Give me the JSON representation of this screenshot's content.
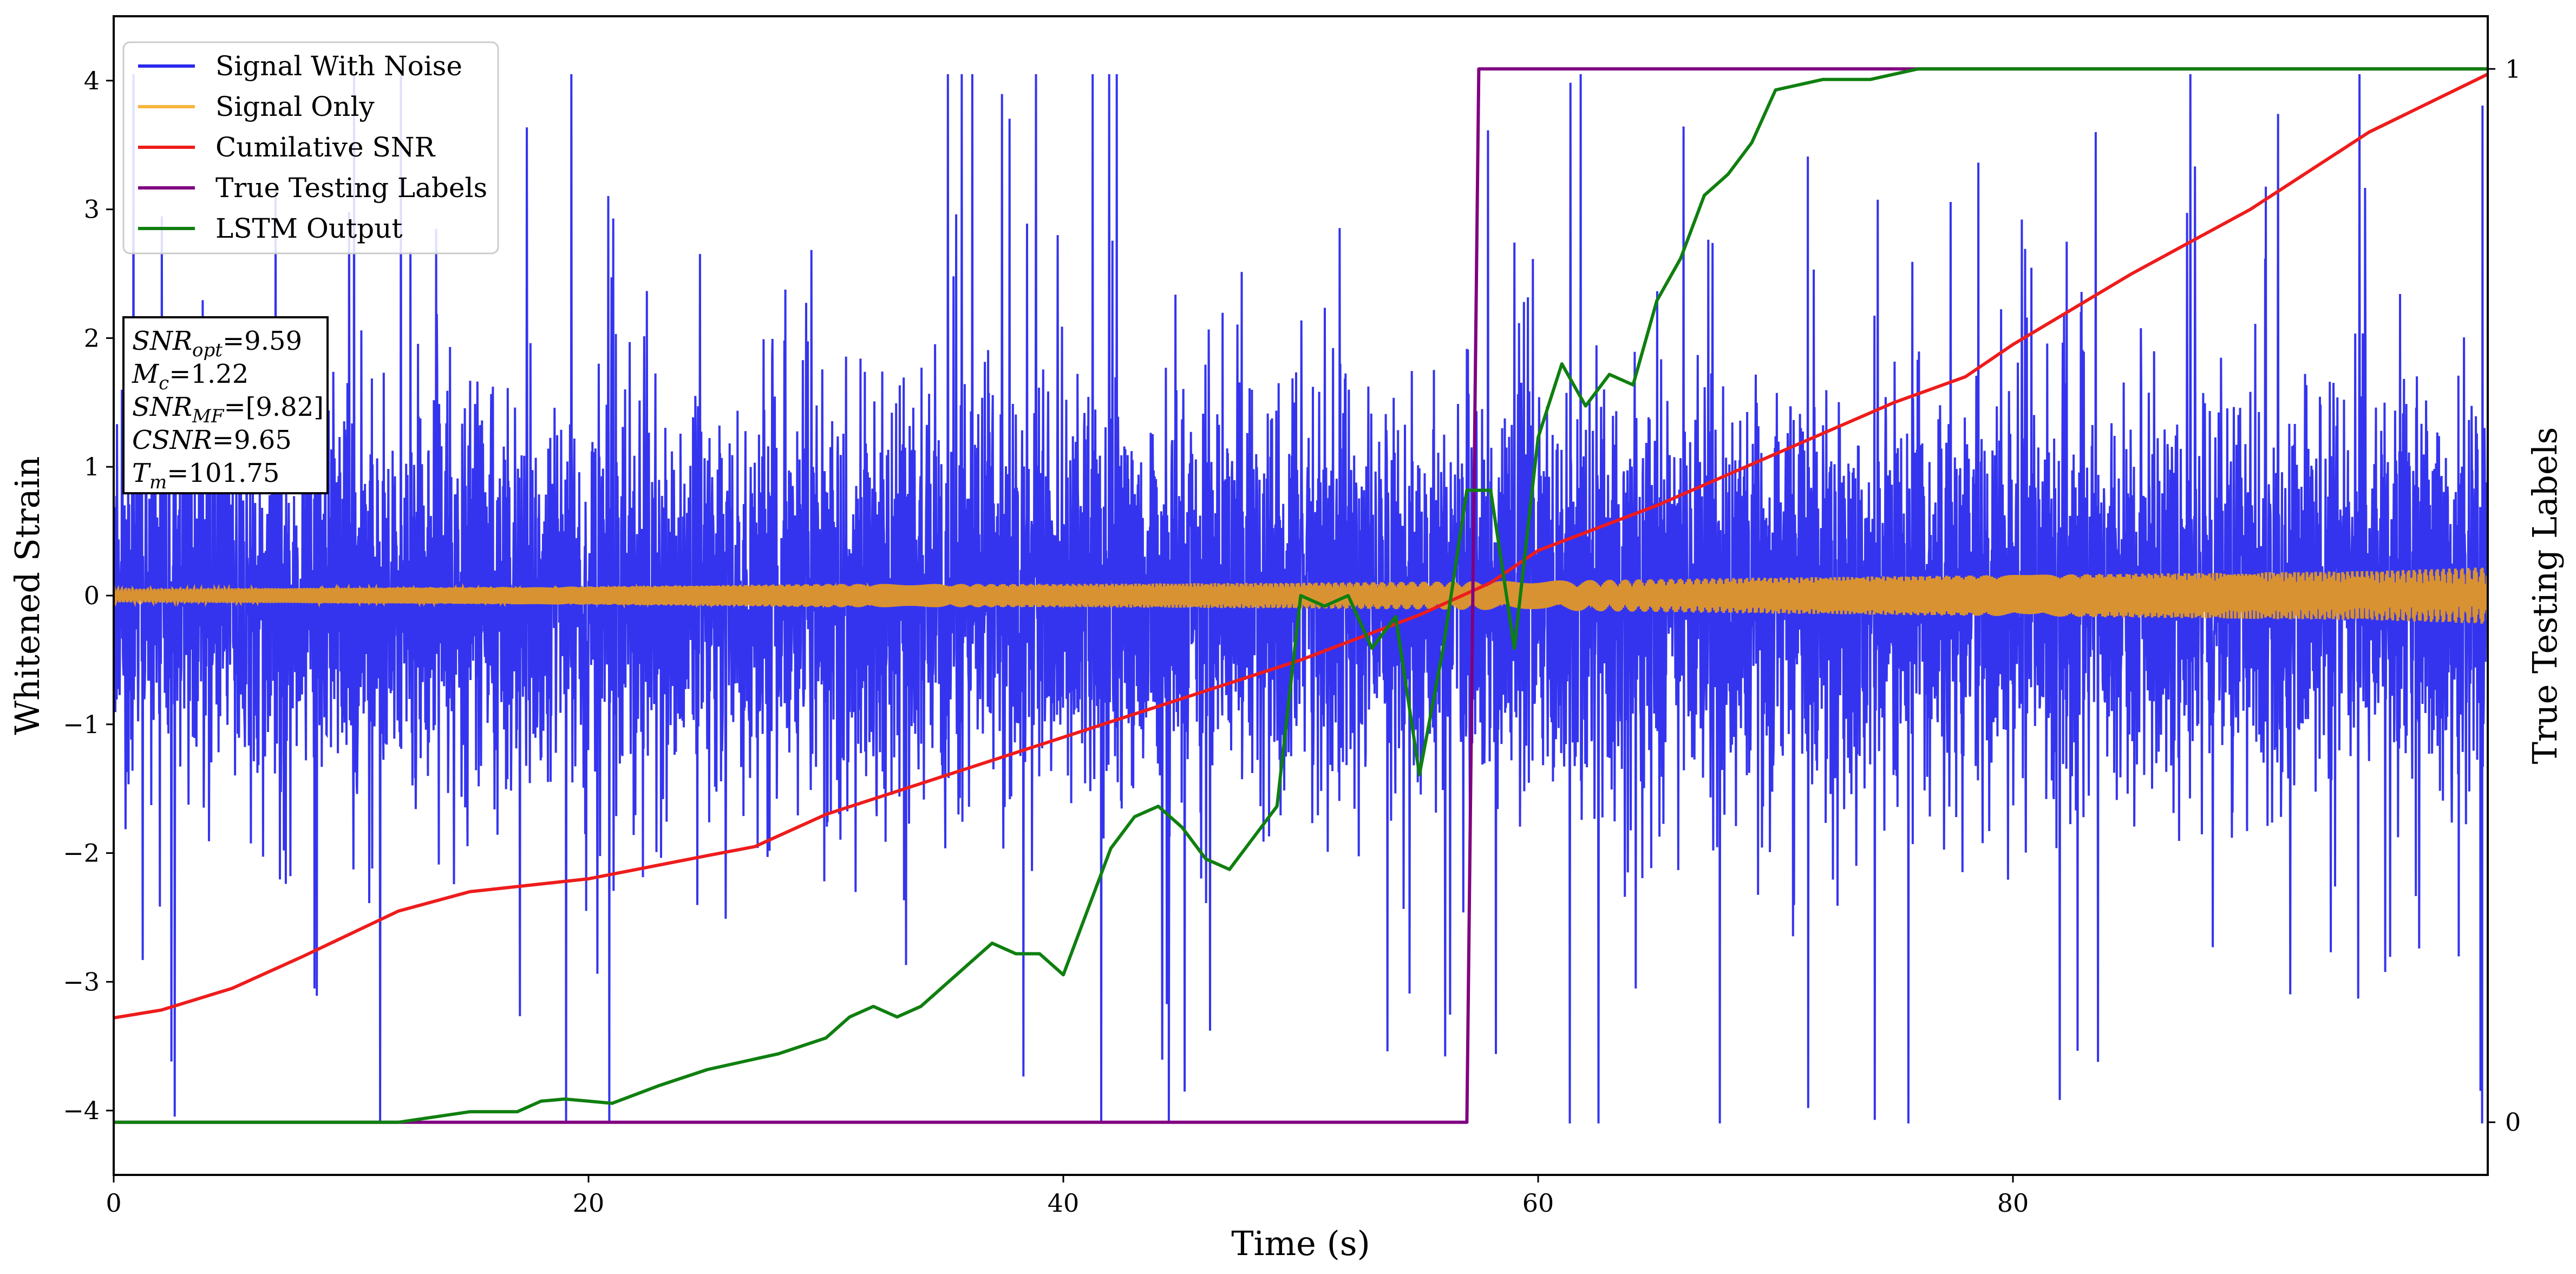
{
  "chart_data": {
    "type": "line",
    "xlabel": "Time (s)",
    "ylabel": "Whitened Strain",
    "y2label": "True Testing Labels",
    "xlim": [
      0,
      100
    ],
    "ylim": [
      -4.5,
      4.5
    ],
    "y2lim": [
      -0.05,
      1.05
    ],
    "x_ticks": [
      0,
      20,
      40,
      60,
      80
    ],
    "y_ticks": [
      -4,
      -3,
      -2,
      -1,
      0,
      1,
      2,
      3,
      4
    ],
    "y2_ticks": [
      0,
      1
    ],
    "tick_labels": {
      "x": [
        "0",
        "20",
        "40",
        "60",
        "80"
      ],
      "y": [
        "−4",
        "−3",
        "−2",
        "−1",
        "0",
        "1",
        "2",
        "3",
        "4"
      ],
      "y2": [
        "0",
        "1"
      ]
    },
    "grid": false,
    "legend_position": "top-left",
    "info_box": {
      "position": "left",
      "lines": [
        {
          "sym": "SNR",
          "sub": "opt",
          "value": "=9.59"
        },
        {
          "sym": "M",
          "sub": "c",
          "value": "=1.22"
        },
        {
          "sym": "SNR",
          "sub": "MF",
          "value": "=[9.82]"
        },
        {
          "sym": "CSNR",
          "sub": "",
          "value": "=9.65"
        },
        {
          "sym": "T",
          "sub": "m",
          "value": "=101.75"
        }
      ]
    },
    "series": [
      {
        "name": "Signal With Noise",
        "color": "#2929ee",
        "axis": "left",
        "style": "dense noise band",
        "typical_envelope": [
          -1.3,
          1.3
        ],
        "extreme_range": [
          -4.1,
          4.05
        ]
      },
      {
        "name": "Signal Only",
        "color": "#d99232",
        "legend_color": "#f7b63c",
        "axis": "left",
        "style": "chirp envelope",
        "envelope": {
          "x": [
            0,
            10,
            20,
            30,
            40,
            50,
            57,
            62,
            70,
            80,
            90,
            95,
            100
          ],
          "amplitude": [
            0.05,
            0.06,
            0.07,
            0.09,
            0.09,
            0.1,
            0.11,
            0.12,
            0.14,
            0.16,
            0.18,
            0.19,
            0.22
          ]
        }
      },
      {
        "name": "Cumilative SNR",
        "color": "#ee1c1c",
        "axis": "left",
        "x": [
          0,
          2,
          5,
          8,
          12,
          15,
          20,
          25,
          27,
          30,
          35,
          40,
          45,
          50,
          55,
          58,
          60,
          65,
          70,
          75,
          78,
          80,
          85,
          90,
          95,
          100
        ],
        "y": [
          -3.28,
          -3.22,
          -3.05,
          -2.8,
          -2.45,
          -2.3,
          -2.2,
          -2.02,
          -1.95,
          -1.7,
          -1.4,
          -1.1,
          -0.8,
          -0.5,
          -0.15,
          0.1,
          0.35,
          0.7,
          1.1,
          1.5,
          1.7,
          1.95,
          2.5,
          3.0,
          3.6,
          4.05
        ]
      },
      {
        "name": "True Testing Labels",
        "color": "#800080",
        "axis": "right",
        "x": [
          0,
          57.0,
          57.5,
          100
        ],
        "y": [
          0,
          0,
          1,
          1
        ]
      },
      {
        "name": "LSTM Output",
        "color": "#0f7f0f",
        "axis": "right",
        "x": [
          0,
          12,
          15,
          17,
          18,
          19,
          20,
          21,
          23,
          25,
          27,
          28,
          30,
          31,
          32,
          33,
          34,
          35,
          36,
          37,
          38,
          39,
          40,
          41,
          42,
          43,
          44,
          45,
          46,
          47,
          48,
          49,
          50,
          51,
          52,
          53,
          54,
          55,
          56,
          57,
          58,
          59,
          60,
          61,
          62,
          63,
          64,
          65,
          66,
          67,
          68,
          69,
          70,
          72,
          74,
          76,
          78,
          80,
          85,
          90,
          95,
          100
        ],
        "y": [
          0,
          0,
          0.01,
          0.01,
          0.02,
          0.022,
          0.02,
          0.018,
          0.035,
          0.05,
          0.06,
          0.065,
          0.08,
          0.1,
          0.11,
          0.1,
          0.11,
          0.13,
          0.15,
          0.17,
          0.16,
          0.16,
          0.14,
          0.2,
          0.26,
          0.29,
          0.3,
          0.28,
          0.25,
          0.24,
          0.27,
          0.3,
          0.5,
          0.49,
          0.5,
          0.45,
          0.48,
          0.33,
          0.45,
          0.6,
          0.6,
          0.45,
          0.65,
          0.72,
          0.68,
          0.71,
          0.7,
          0.78,
          0.82,
          0.88,
          0.9,
          0.93,
          0.98,
          0.99,
          0.99,
          1.0,
          1.0,
          1.0,
          1.0,
          1.0,
          1.0,
          1.0
        ]
      }
    ]
  }
}
